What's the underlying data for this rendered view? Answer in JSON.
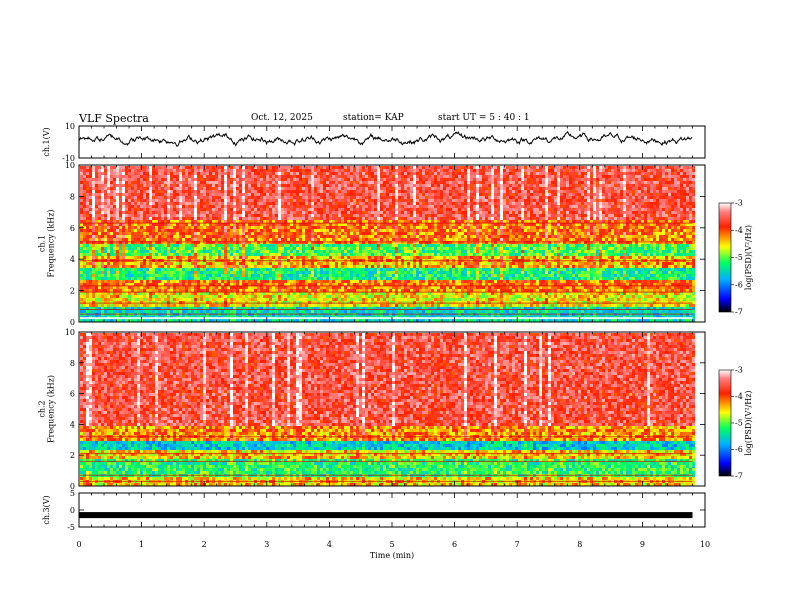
{
  "header": {
    "title": "VLF Spectra",
    "date": "Oct. 12, 2025",
    "station": "station= KAP",
    "start": "start  UT =   5 : 40 : 1"
  },
  "chart_data": [
    {
      "name": "ch1-voltage",
      "type": "line",
      "ylabel": "ch.1(V)",
      "ylim": [
        -10,
        10
      ],
      "yticks": [
        "10",
        "-10"
      ],
      "xlim": [
        0,
        9.8
      ],
      "description_of_series": "noisy waveform fluctuating roughly between -2 and 6 V"
    },
    {
      "name": "ch1-spectrogram",
      "type": "heatmap",
      "ylabel": "ch.1\nFrequency (kHz)",
      "ylim": [
        0,
        10
      ],
      "yticks": [
        "0",
        "2",
        "4",
        "6",
        "8",
        "10"
      ],
      "xlim": [
        0,
        9.8
      ],
      "bands_khz": [
        {
          "from": 0.0,
          "to": 1.0,
          "level": -5.5
        },
        {
          "from": 1.0,
          "to": 2.0,
          "level": -4.6
        },
        {
          "from": 2.0,
          "to": 2.7,
          "level": -4.2
        },
        {
          "from": 2.7,
          "to": 3.6,
          "level": -5.3
        },
        {
          "from": 3.6,
          "to": 4.3,
          "level": -4.4
        },
        {
          "from": 4.3,
          "to": 5.0,
          "level": -5.1
        },
        {
          "from": 5.0,
          "to": 6.5,
          "level": -4.2
        },
        {
          "from": 6.5,
          "to": 10.0,
          "level": -3.7
        }
      ],
      "colorbar": {
        "label": "log(PSD)(V²/Hz)",
        "ticks": [
          "-3",
          "-4",
          "-5",
          "-6",
          "-7"
        ],
        "range": [
          -7,
          -3
        ]
      }
    },
    {
      "name": "ch2-spectrogram",
      "type": "heatmap",
      "ylabel": "ch.2\nFrequency (kHz)",
      "ylim": [
        0,
        10
      ],
      "yticks": [
        "0",
        "2",
        "4",
        "6",
        "8",
        "10"
      ],
      "xlim": [
        0,
        9.8
      ],
      "bands_khz": [
        {
          "from": 0.0,
          "to": 0.6,
          "level": -4.5
        },
        {
          "from": 0.6,
          "to": 1.8,
          "level": -5.2
        },
        {
          "from": 1.8,
          "to": 2.4,
          "level": -4.5
        },
        {
          "from": 2.4,
          "to": 3.0,
          "level": -5.6
        },
        {
          "from": 3.0,
          "to": 4.0,
          "level": -4.3
        },
        {
          "from": 4.0,
          "to": 10.0,
          "level": -3.7
        }
      ],
      "colorbar": {
        "label": "log(PSD)(V²/Hz)",
        "ticks": [
          "-3",
          "-4",
          "-5",
          "-6",
          "-7"
        ],
        "range": [
          -7,
          -3
        ]
      }
    },
    {
      "name": "ch3-voltage",
      "type": "line",
      "ylabel": "ch.3(V)",
      "ylim": [
        -5,
        5
      ],
      "yticks": [
        "5",
        "0",
        "-5"
      ],
      "xlim": [
        0,
        9.8
      ],
      "constant_level": -1.5,
      "xlabel": "Time  (min)",
      "xticks": [
        "0",
        "1",
        "2",
        "3",
        "4",
        "5",
        "6",
        "7",
        "8",
        "9",
        "10"
      ]
    }
  ]
}
